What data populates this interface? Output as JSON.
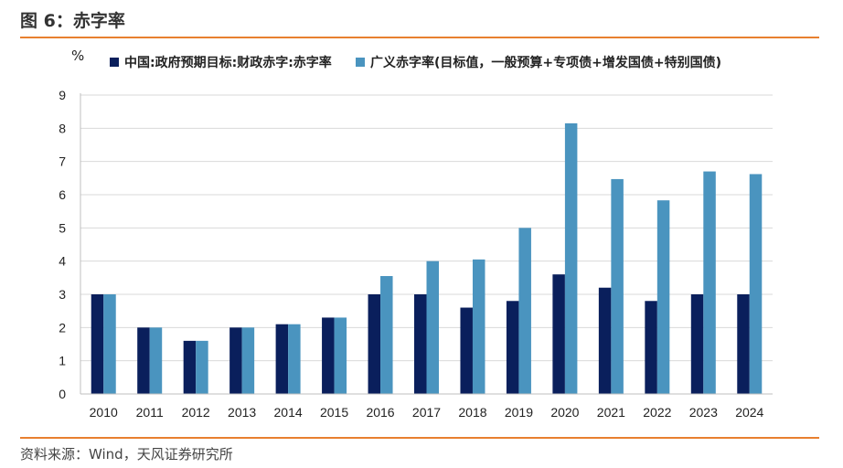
{
  "figure": {
    "title": "图 6：赤字率",
    "source": "资料来源：Wind，天风证券研究所"
  },
  "colors": {
    "accent_rule": "#e8802f",
    "series1": "#0a1f5c",
    "series2": "#4a94bf",
    "grid": "#d9d9d9"
  },
  "chart_data": {
    "type": "bar",
    "unit_label": "%",
    "categories": [
      "2010",
      "2011",
      "2012",
      "2013",
      "2014",
      "2015",
      "2016",
      "2017",
      "2018",
      "2019",
      "2020",
      "2021",
      "2022",
      "2023",
      "2024"
    ],
    "series": [
      {
        "name": "中国:政府预期目标:财政赤字:赤字率",
        "values": [
          3,
          2,
          1.6,
          2,
          2.1,
          2.3,
          3,
          3,
          2.6,
          2.8,
          3.6,
          3.2,
          2.8,
          3,
          3
        ]
      },
      {
        "name": "广义赤字率(目标值，一般预算+专项债+增发国债+特别国债)",
        "values": [
          3,
          2,
          1.6,
          2,
          2.1,
          2.3,
          3.55,
          4.0,
          4.05,
          5.0,
          8.15,
          6.47,
          5.83,
          6.7,
          6.62
        ]
      }
    ],
    "ylim": [
      0,
      9
    ],
    "yticks": [
      "0",
      "1",
      "2",
      "3",
      "4",
      "5",
      "6",
      "7",
      "8",
      "9"
    ],
    "grid": "horizontal",
    "legend_position": "top"
  }
}
